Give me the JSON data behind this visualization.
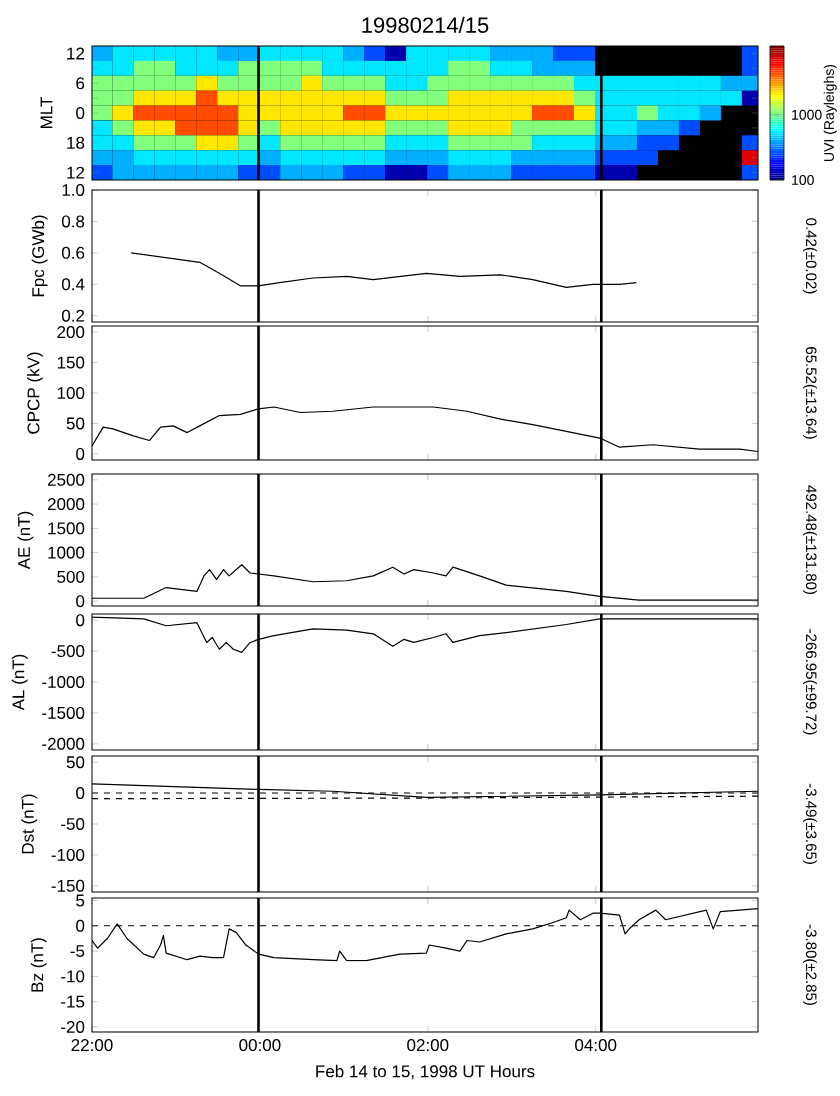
{
  "chart_data": [
    {
      "type": "heatmap",
      "title": "19980214/15",
      "ylabel": "MLT",
      "clabel": "UVI (Rayleighs)",
      "clim": [
        100,
        1950
      ],
      "cticks": [
        100,
        1000
      ],
      "tick_labels": "y",
      "xlim": [
        "1998-02-14T22:00",
        "1998-02-15T05:56"
      ],
      "x": [
        "1998-02-14T22:07",
        "1998-02-14T22:22",
        "1998-02-14T22:37",
        "1998-02-14T22:52",
        "1998-02-14T23:07",
        "1998-02-14T23:22",
        "1998-02-14T23:37",
        "1998-02-14T23:52",
        "1998-02-15T00:07",
        "1998-02-15T00:22",
        "1998-02-15T00:37",
        "1998-02-15T00:52",
        "1998-02-15T01:07",
        "1998-02-15T01:22",
        "1998-02-15T01:37",
        "1998-02-15T01:52",
        "1998-02-15T02:07",
        "1998-02-15T02:22",
        "1998-02-15T02:37",
        "1998-02-15T02:52",
        "1998-02-15T03:07",
        "1998-02-15T03:22",
        "1998-02-15T03:37",
        "1998-02-15T03:52",
        "1998-02-15T04:07",
        "1998-02-15T04:22",
        "1998-02-15T04:37",
        "1998-02-15T04:52",
        "1998-02-15T05:07",
        "1998-02-15T05:22",
        "1998-02-15T05:37",
        "1998-02-15T05:52"
      ],
      "y_categories": [
        "12",
        null,
        "6",
        null,
        "0",
        null,
        "18",
        null,
        "12"
      ],
      "cells": [
        [
          650,
          750,
          750,
          750,
          750,
          750,
          650,
          650,
          750,
          750,
          750,
          750,
          650,
          470,
          190,
          750,
          750,
          750,
          750,
          650,
          650,
          650,
          470,
          470,
          null,
          null,
          null,
          null,
          null,
          null,
          null,
          470
        ],
        [
          750,
          750,
          1030,
          1030,
          750,
          750,
          750,
          1030,
          1030,
          1030,
          1030,
          750,
          750,
          750,
          750,
          750,
          750,
          1030,
          1030,
          750,
          750,
          650,
          650,
          650,
          null,
          null,
          null,
          null,
          null,
          null,
          null,
          470
        ],
        [
          1030,
          1030,
          1030,
          1030,
          1030,
          1300,
          1030,
          1030,
          1030,
          1030,
          1300,
          1030,
          1030,
          1030,
          750,
          750,
          1030,
          1030,
          1030,
          1030,
          1030,
          1030,
          1030,
          750,
          750,
          750,
          750,
          750,
          750,
          750,
          650,
          650
        ],
        [
          1030,
          1030,
          1300,
          1300,
          1300,
          1580,
          1300,
          1300,
          1300,
          1300,
          1300,
          1300,
          1300,
          1300,
          1030,
          1030,
          1030,
          1300,
          1300,
          1300,
          1300,
          1300,
          1300,
          1030,
          750,
          750,
          750,
          750,
          750,
          750,
          750,
          190
        ],
        [
          1030,
          1300,
          1580,
          1580,
          1580,
          1580,
          1580,
          1300,
          1300,
          1300,
          1300,
          1300,
          1580,
          1580,
          1300,
          1300,
          1300,
          1300,
          1300,
          1300,
          1300,
          1580,
          1580,
          1300,
          750,
          750,
          1030,
          750,
          750,
          650,
          null,
          null
        ],
        [
          750,
          1030,
          1300,
          1300,
          1580,
          1580,
          1580,
          1300,
          1030,
          1300,
          1300,
          1300,
          1300,
          1300,
          1030,
          1030,
          1030,
          1300,
          1300,
          1300,
          1030,
          1030,
          1030,
          1030,
          750,
          750,
          650,
          650,
          470,
          null,
          null,
          null
        ],
        [
          750,
          750,
          1030,
          1030,
          1030,
          1300,
          1300,
          1030,
          750,
          1030,
          1030,
          1030,
          1030,
          1030,
          750,
          750,
          750,
          1030,
          1030,
          1030,
          1030,
          750,
          750,
          750,
          650,
          650,
          470,
          470,
          null,
          null,
          null,
          470
        ],
        [
          650,
          650,
          750,
          750,
          750,
          750,
          750,
          750,
          650,
          750,
          750,
          750,
          750,
          750,
          650,
          650,
          650,
          750,
          750,
          750,
          650,
          650,
          650,
          650,
          470,
          470,
          470,
          null,
          null,
          null,
          null,
          1770
        ],
        [
          470,
          650,
          650,
          650,
          650,
          650,
          650,
          470,
          470,
          650,
          650,
          650,
          470,
          470,
          190,
          190,
          470,
          650,
          650,
          650,
          470,
          470,
          470,
          470,
          190,
          190,
          null,
          null,
          null,
          null,
          null,
          470
        ]
      ],
      "ref_lines": [
        {
          "axis": "x",
          "value": "1998-02-14T23:59",
          "color": "#000000"
        },
        {
          "axis": "x",
          "value": "1998-02-15T04:04",
          "color": "#000000"
        }
      ]
    },
    {
      "type": "line",
      "ylabel": "Fpc (GWb)",
      "xlim": [
        "1998-02-14T22:00",
        "1998-02-15T05:56"
      ],
      "ylim": [
        0.16,
        1.0
      ],
      "yticks": [
        0.2,
        0.4,
        0.6,
        0.8,
        {
          "value": 1.0,
          "label": "1.0"
        }
      ],
      "tick_labels": "y",
      "xticks": [
        {
          "value": "1998-02-14T22:00",
          "label": null
        },
        {
          "value": "1998-02-15T00:00",
          "label": null
        },
        {
          "value": "1998-02-15T02:00",
          "label": null
        },
        {
          "value": "1998-02-15T04:00",
          "label": null
        }
      ],
      "series": [
        {
          "color": "#000000",
          "x": [
            "1998-02-14T22:28",
            "1998-02-14T23:17",
            "1998-02-14T23:31",
            "1998-02-14T23:46",
            "1998-02-14T23:59",
            "1998-02-15T00:14",
            "1998-02-15T00:38",
            "1998-02-15T01:02",
            "1998-02-15T01:21",
            "1998-02-15T01:59",
            "1998-02-15T02:23",
            "1998-02-15T02:52",
            "1998-02-15T03:15",
            "1998-02-15T03:39",
            "1998-02-15T03:58",
            "1998-02-15T04:17",
            "1998-02-15T04:29"
          ],
          "values": [
            0.6,
            0.54,
            0.47,
            0.39,
            0.39,
            0.41,
            0.44,
            0.45,
            0.43,
            0.47,
            0.45,
            0.46,
            0.43,
            0.38,
            0.4,
            0.4,
            0.41
          ]
        }
      ],
      "ref_lines": [
        {
          "axis": "x",
          "value": "1998-02-14T23:59",
          "color": "#000000"
        },
        {
          "axis": "x",
          "value": "1998-02-15T04:04",
          "color": "#000000"
        }
      ],
      "annotations": [
        "0.42(±0.02)"
      ]
    },
    {
      "type": "line",
      "ylabel": "CPCP (kV)",
      "xlim": [
        "1998-02-14T22:00",
        "1998-02-15T05:56"
      ],
      "ylim": [
        -10,
        210
      ],
      "yticks": [
        0,
        50,
        100,
        150,
        200
      ],
      "tick_labels": "y",
      "xticks": [
        {
          "value": "1998-02-14T22:00",
          "label": null
        },
        {
          "value": "1998-02-15T00:00",
          "label": null
        },
        {
          "value": "1998-02-15T02:00",
          "label": null
        },
        {
          "value": "1998-02-15T04:00",
          "label": null
        }
      ],
      "series": [
        {
          "color": "#000000",
          "x": [
            "1998-02-14T22:00",
            "1998-02-14T22:08",
            "1998-02-14T22:15",
            "1998-02-14T22:29",
            "1998-02-14T22:41",
            "1998-02-14T22:49",
            "1998-02-14T22:58",
            "1998-02-14T23:08",
            "1998-02-14T23:17",
            "1998-02-14T23:31",
            "1998-02-14T23:46",
            "1998-02-14T23:59",
            "1998-02-15T00:10",
            "1998-02-15T00:29",
            "1998-02-15T00:52",
            "1998-02-15T01:21",
            "1998-02-15T01:50",
            "1998-02-15T02:04",
            "1998-02-15T02:28",
            "1998-02-15T02:52",
            "1998-02-15T03:15",
            "1998-02-15T03:39",
            "1998-02-15T04:03",
            "1998-02-15T04:17",
            "1998-02-15T04:41",
            "1998-02-15T05:14",
            "1998-02-15T05:43",
            "1998-02-15T05:56"
          ],
          "values": [
            13,
            44,
            41,
            30,
            22,
            44,
            46,
            35,
            46,
            63,
            65,
            74,
            77,
            68,
            70,
            77,
            77,
            77,
            70,
            57,
            48,
            37,
            26,
            11,
            15,
            8,
            8,
            4
          ]
        }
      ],
      "ref_lines": [
        {
          "axis": "x",
          "value": "1998-02-14T23:59",
          "color": "#000000"
        },
        {
          "axis": "x",
          "value": "1998-02-15T04:04",
          "color": "#000000"
        }
      ],
      "annotations": [
        "65.52(±13.64)"
      ]
    },
    {
      "type": "line",
      "ylabel": "AE (nT)",
      "xlim": [
        "1998-02-14T22:00",
        "1998-02-15T05:56"
      ],
      "ylim": [
        -100,
        2620
      ],
      "yticks": [
        0,
        500,
        1000,
        1500,
        2000,
        2500
      ],
      "tick_labels": "y",
      "xticks": [
        {
          "value": "1998-02-14T22:00",
          "label": null
        },
        {
          "value": "1998-02-15T00:00",
          "label": null
        },
        {
          "value": "1998-02-15T02:00",
          "label": null
        },
        {
          "value": "1998-02-15T04:00",
          "label": null
        }
      ],
      "series": [
        {
          "color": "#000000",
          "x": [
            "1998-02-14T22:00",
            "1998-02-14T22:37",
            "1998-02-14T22:53",
            "1998-02-14T23:15",
            "1998-02-14T23:20",
            "1998-02-14T23:24",
            "1998-02-14T23:29",
            "1998-02-14T23:34",
            "1998-02-14T23:38",
            "1998-02-14T23:47",
            "1998-02-14T23:53",
            "1998-02-14T23:59",
            "1998-02-15T00:10",
            "1998-02-15T00:38",
            "1998-02-15T01:02",
            "1998-02-15T01:21",
            "1998-02-15T01:35",
            "1998-02-15T01:43",
            "1998-02-15T01:50",
            "1998-02-15T02:04",
            "1998-02-15T02:13",
            "1998-02-15T02:18",
            "1998-02-15T02:37",
            "1998-02-15T02:56",
            "1998-02-15T03:39",
            "1998-02-15T03:53",
            "1998-02-15T04:03",
            "1998-02-15T04:31",
            "1998-02-15T05:56"
          ],
          "values": [
            60,
            60,
            280,
            200,
            520,
            650,
            450,
            650,
            520,
            750,
            580,
            560,
            520,
            400,
            420,
            520,
            700,
            560,
            650,
            580,
            520,
            700,
            520,
            330,
            200,
            140,
            100,
            20,
            20
          ]
        }
      ],
      "ref_lines": [
        {
          "axis": "x",
          "value": "1998-02-14T23:59",
          "color": "#000000"
        },
        {
          "axis": "x",
          "value": "1998-02-15T04:04",
          "color": "#000000"
        }
      ],
      "annotations": [
        "492.48(±131.80)"
      ]
    },
    {
      "type": "line",
      "ylabel": "AL (nT)",
      "xlim": [
        "1998-02-14T22:00",
        "1998-02-15T05:56"
      ],
      "ylim": [
        -2100,
        100
      ],
      "yticks": [
        -2000,
        -1500,
        -1000,
        -500,
        0
      ],
      "tick_labels": "y",
      "xticks": [
        {
          "value": "1998-02-14T22:00",
          "label": null
        },
        {
          "value": "1998-02-15T00:00",
          "label": null
        },
        {
          "value": "1998-02-15T02:00",
          "label": null
        },
        {
          "value": "1998-02-15T04:00",
          "label": null
        }
      ],
      "series": [
        {
          "color": "#000000",
          "x": [
            "1998-02-14T22:00",
            "1998-02-14T22:37",
            "1998-02-14T22:53",
            "1998-02-14T23:15",
            "1998-02-14T23:22",
            "1998-02-14T23:26",
            "1998-02-14T23:31",
            "1998-02-14T23:36",
            "1998-02-14T23:41",
            "1998-02-14T23:47",
            "1998-02-14T23:53",
            "1998-02-14T23:59",
            "1998-02-15T00:10",
            "1998-02-15T00:38",
            "1998-02-15T01:02",
            "1998-02-15T01:21",
            "1998-02-15T01:35",
            "1998-02-15T01:43",
            "1998-02-15T01:50",
            "1998-02-15T02:04",
            "1998-02-15T02:13",
            "1998-02-15T02:18",
            "1998-02-15T02:37",
            "1998-02-15T02:56",
            "1998-02-15T03:39",
            "1998-02-15T04:03",
            "1998-02-15T04:31",
            "1998-02-15T05:56"
          ],
          "values": [
            50,
            20,
            -90,
            -40,
            -360,
            -280,
            -470,
            -360,
            -470,
            -520,
            -360,
            -310,
            -250,
            -140,
            -160,
            -220,
            -420,
            -310,
            -360,
            -280,
            -220,
            -360,
            -250,
            -200,
            -70,
            20,
            20,
            20
          ]
        }
      ],
      "ref_lines": [
        {
          "axis": "x",
          "value": "1998-02-14T23:59",
          "color": "#000000"
        },
        {
          "axis": "x",
          "value": "1998-02-15T04:04",
          "color": "#000000"
        }
      ],
      "annotations": [
        "-266.95(±99.72)"
      ]
    },
    {
      "type": "line",
      "ylabel": "Dst (nT)",
      "xlim": [
        "1998-02-14T22:00",
        "1998-02-15T05:56"
      ],
      "ylim": [
        -160,
        60
      ],
      "yticks": [
        -150,
        -100,
        -50,
        0,
        50
      ],
      "tick_labels": "y",
      "xticks": [
        {
          "value": "1998-02-14T22:00",
          "label": null
        },
        {
          "value": "1998-02-15T00:00",
          "label": null
        },
        {
          "value": "1998-02-15T02:00",
          "label": null
        },
        {
          "value": "1998-02-15T04:00",
          "label": null
        }
      ],
      "series": [
        {
          "color": "#000000",
          "x": [
            "1998-02-14T22:00",
            "1998-02-14T23:59",
            "1998-02-15T00:52",
            "1998-02-15T01:59",
            "1998-02-15T04:03",
            "1998-02-15T05:56"
          ],
          "values": [
            15,
            6,
            3,
            -7,
            -3,
            3
          ]
        },
        {
          "color": "#000000",
          "line_style": "dashed",
          "x": [
            "1998-02-14T22:00",
            "1998-02-15T01:59",
            "1998-02-15T05:56"
          ],
          "values": [
            -9,
            -8,
            -5
          ]
        }
      ],
      "ref_lines": [
        {
          "axis": "x",
          "value": "1998-02-14T23:59",
          "color": "#000000"
        },
        {
          "axis": "x",
          "value": "1998-02-15T04:04",
          "color": "#000000"
        },
        {
          "axis": "y",
          "value": 0,
          "color": "#000000",
          "line_style": "dashed"
        }
      ],
      "annotations": [
        "-3.49(±3.65)"
      ]
    },
    {
      "type": "line",
      "ylabel": "Bz (nT)",
      "xlabel": "Feb 14 to 15, 1998 UT Hours",
      "xlim": [
        "1998-02-14T22:00",
        "1998-02-15T05:56"
      ],
      "ylim": [
        -21,
        5.5
      ],
      "yticks": [
        -20,
        -15,
        -10,
        -5,
        0,
        5
      ],
      "xticks": [
        {
          "value": "1998-02-14T22:00",
          "label": "22:00"
        },
        {
          "value": "1998-02-15T00:00",
          "label": "00:00"
        },
        {
          "value": "1998-02-15T02:00",
          "label": "02:00"
        },
        {
          "value": "1998-02-15T04:00",
          "label": "04:00"
        }
      ],
      "series": [
        {
          "color": "#000000",
          "x": [
            "1998-02-14T22:00",
            "1998-02-14T22:04",
            "1998-02-14T22:11",
            "1998-02-14T22:18",
            "1998-02-14T22:25",
            "1998-02-14T22:37",
            "1998-02-14T22:44",
            "1998-02-14T22:49",
            "1998-02-14T22:51",
            "1998-02-14T22:53",
            "1998-02-14T23:08",
            "1998-02-14T23:17",
            "1998-02-14T23:26",
            "1998-02-14T23:34",
            "1998-02-14T23:38",
            "1998-02-14T23:43",
            "1998-02-14T23:50",
            "1998-02-14T23:59",
            "1998-02-15T00:10",
            "1998-02-15T00:38",
            "1998-02-15T00:55",
            "1998-02-15T00:57",
            "1998-02-15T01:02",
            "1998-02-15T01:16",
            "1998-02-15T01:40",
            "1998-02-15T01:59",
            "1998-02-15T02:01",
            "1998-02-15T02:13",
            "1998-02-15T02:23",
            "1998-02-15T02:28",
            "1998-02-15T02:37",
            "1998-02-15T02:56",
            "1998-02-15T03:15",
            "1998-02-15T03:29",
            "1998-02-15T03:39",
            "1998-02-15T03:41",
            "1998-02-15T03:49",
            "1998-02-15T03:58",
            "1998-02-15T04:03",
            "1998-02-15T04:17",
            "1998-02-15T04:21",
            "1998-02-15T04:24",
            "1998-02-15T04:31",
            "1998-02-15T04:43",
            "1998-02-15T04:50",
            "1998-02-15T05:19",
            "1998-02-15T05:24",
            "1998-02-15T05:29",
            "1998-02-15T05:56"
          ],
          "values": [
            -2.9,
            -4.4,
            -2.5,
            0.4,
            -2.5,
            -5.6,
            -6.3,
            -3.8,
            -1.9,
            -5.4,
            -6.7,
            -6.0,
            -6.3,
            -6.3,
            -0.6,
            -1.3,
            -3.8,
            -5.6,
            -6.3,
            -6.7,
            -6.9,
            -5.0,
            -6.9,
            -6.9,
            -5.6,
            -5.4,
            -3.8,
            -4.4,
            -5.0,
            -2.9,
            -3.2,
            -1.6,
            -0.6,
            0.6,
            1.6,
            3.1,
            1.2,
            2.5,
            2.5,
            2.1,
            -1.6,
            -0.6,
            1.2,
            3.1,
            1.2,
            3.1,
            -0.6,
            2.8,
            3.4
          ]
        }
      ],
      "ref_lines": [
        {
          "axis": "x",
          "value": "1998-02-14T23:59",
          "color": "#000000"
        },
        {
          "axis": "x",
          "value": "1998-02-15T04:04",
          "color": "#000000"
        },
        {
          "axis": "y",
          "value": 0,
          "color": "#000000",
          "line_style": "dashed"
        }
      ],
      "annotations": [
        "-3.80(±2.85)"
      ]
    }
  ]
}
